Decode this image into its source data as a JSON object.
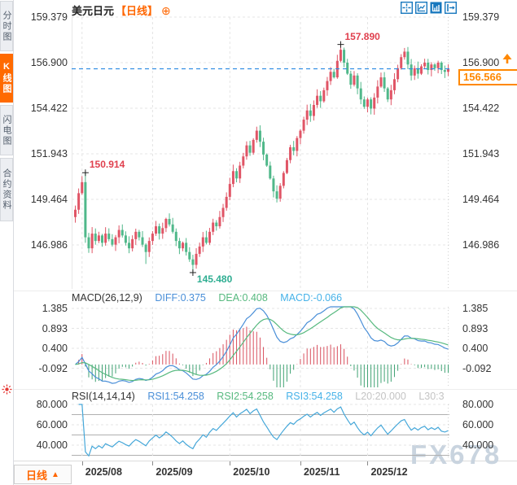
{
  "window": {
    "symbol": "美元日元",
    "period_tag": "【日线】",
    "add_button": "⊕"
  },
  "toolbar": {
    "icons": [
      "crosshair-icon",
      "measure-icon",
      "indicator-panel-icon",
      "exit-icon"
    ]
  },
  "sidebar": {
    "tabs": [
      {
        "label": "分时图",
        "active": false
      },
      {
        "label": "K线图",
        "active": true
      },
      {
        "label": "闪电图",
        "active": false
      },
      {
        "label": "合约资料",
        "active": false
      }
    ]
  },
  "price_axis": {
    "ticks": [
      "159.379",
      "156.900",
      "154.422",
      "151.943",
      "149.464",
      "146.986"
    ]
  },
  "current_price": {
    "label": "156.566"
  },
  "macd_header": {
    "title": "MACD(26,12,9)",
    "diff": "DIFF:0.375",
    "dea": "DEA:0.408",
    "macd": "MACD:-0.066"
  },
  "macd_axis": {
    "ticks": [
      "1.385",
      "0.893",
      "0.400",
      "-0.092"
    ]
  },
  "rsi_header": {
    "title": "RSI(14,14,14)",
    "rsi1": "RSI1:54.258",
    "rsi2": "RSI2:54.258",
    "rsi3": "RSI3:54.258",
    "l20": "L20:20.000",
    "l30": "L30:3"
  },
  "rsi_axis": {
    "ticks": [
      "80.000",
      "60.000",
      "40.000"
    ]
  },
  "period_selector": {
    "label": "日线",
    "arrow": "▲"
  },
  "watermark": "FX678",
  "colors": {
    "up": "#e05566",
    "down": "#50b88a",
    "grid": "#e4e4e4",
    "edge": "#cfcfcf",
    "axis_text": "#333333",
    "accent": "#ff6600",
    "blue_dashed": "#2a8ae2",
    "hist_up": "#d9505e",
    "hist_down": "#3fa273",
    "diff_line": "#4a8fd8",
    "dea_line": "#57b97f",
    "rsi_line": "#45a7d9",
    "ref_line": "#b0b0b0",
    "marker": "#222222",
    "anno_up": "#e0404e",
    "anno_down": "#2fae92",
    "icon_blue": "#1878be",
    "settings_red": "#e53935"
  },
  "chart_data": {
    "type": "candlestick",
    "symbol": "美元日元",
    "period": "日线",
    "price_axis_values": [
      159.379,
      156.9,
      154.422,
      151.943,
      149.464,
      146.986
    ],
    "last_price": 156.566,
    "x_axis": {
      "month_labels": [
        "2025/08",
        "2025/09",
        "2025/10",
        "2025/11",
        "2025/12"
      ],
      "month_candle_indices": [
        2,
        23,
        46,
        67,
        87
      ]
    },
    "candles": {
      "first_open": 148.5,
      "closes": [
        148.9,
        149.8,
        150.4,
        147.4,
        146.8,
        147.6,
        147.2,
        147.5,
        147.1,
        147.6,
        147.3,
        147.0,
        147.4,
        147.8,
        147.5,
        147.1,
        146.8,
        147.3,
        147.7,
        147.4,
        147.0,
        146.6,
        147.2,
        147.6,
        148.0,
        147.6,
        147.9,
        148.4,
        148.1,
        147.7,
        147.2,
        146.8,
        147.1,
        146.6,
        146.2,
        145.9,
        146.5,
        146.9,
        147.4,
        147.1,
        147.7,
        148.2,
        148.0,
        148.5,
        149.0,
        149.6,
        150.3,
        151.0,
        150.6,
        151.3,
        151.8,
        152.4,
        152.0,
        152.7,
        153.2,
        152.6,
        151.9,
        151.3,
        150.6,
        149.9,
        149.5,
        150.2,
        150.9,
        151.6,
        152.3,
        152.1,
        152.8,
        153.2,
        153.8,
        154.3,
        154.0,
        154.6,
        155.1,
        154.8,
        155.4,
        155.9,
        156.4,
        156.1,
        157.0,
        157.6,
        156.9,
        156.3,
        155.7,
        156.2,
        155.5,
        154.9,
        154.5,
        154.9,
        154.4,
        155.0,
        155.6,
        156.1,
        155.5,
        154.9,
        155.4,
        156.0,
        156.6,
        157.2,
        157.5,
        156.8,
        156.2,
        156.6,
        156.3,
        156.7,
        156.9,
        156.5,
        156.8,
        156.6,
        156.9,
        156.5,
        156.4,
        156.566
      ],
      "specials": {
        "3": {
          "high": 150.914
        },
        "21": {
          "low": 145.95
        },
        "35": {
          "low": 145.48
        },
        "79": {
          "high": 157.89
        },
        "98": {
          "high": 157.7
        }
      }
    },
    "annotations": [
      {
        "label": "150.914",
        "value": 150.914,
        "candle": 3,
        "kind": "high",
        "color_key": "anno_up"
      },
      {
        "label": "157.890",
        "value": 157.89,
        "candle": 79,
        "kind": "high",
        "color_key": "anno_up"
      },
      {
        "label": "145.480",
        "value": 145.48,
        "candle": 35,
        "kind": "low",
        "color_key": "anno_down"
      }
    ],
    "indicators": {
      "macd": {
        "params": [
          26,
          12,
          9
        ],
        "last": {
          "diff": 0.375,
          "dea": 0.408,
          "macd": -0.066
        },
        "axis_values": [
          1.385,
          0.893,
          0.4,
          -0.092
        ]
      },
      "rsi": {
        "params": [
          14,
          14,
          14
        ],
        "last": {
          "rsi1": 54.258,
          "rsi2": 54.258,
          "rsi3": 54.258
        },
        "axis_values": [
          80,
          60,
          40
        ],
        "ref_levels": [
          70,
          50,
          30
        ]
      }
    }
  }
}
